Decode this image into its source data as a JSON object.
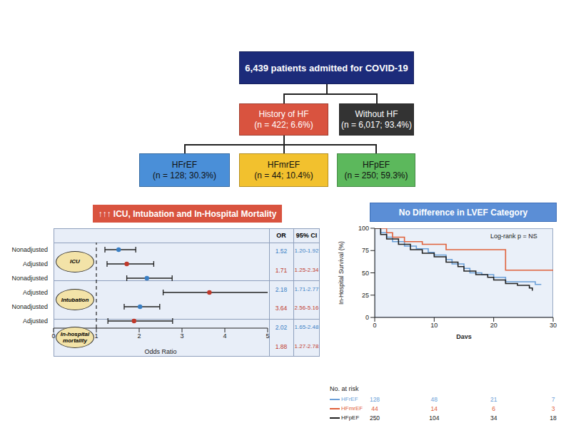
{
  "flowchart": {
    "root": {
      "label": "6,439 patients admitted for COVID-19",
      "color": "#1c2b7a"
    },
    "groups": [
      {
        "label": "History of HF",
        "detail": "(n = 422; 6.6%)",
        "color": "#d9533f"
      },
      {
        "label": "Without HF",
        "detail": "(n = 6,017; 93.4%)",
        "color": "#333333"
      }
    ],
    "subgroups": [
      {
        "label": "HFrEF",
        "detail": "(n = 128; 30.3%)",
        "color": "#4a8fd8"
      },
      {
        "label": "HFmrEF",
        "detail": "(n = 44; 10.4%)",
        "color": "#f2c12e"
      },
      {
        "label": "HFpEF",
        "detail": "(n = 250; 59.3%)",
        "color": "#5cb85c"
      }
    ]
  },
  "chart_data": [
    {
      "type": "forest",
      "title": "↑↑↑ ICU, Intubation and In-Hospital Mortality",
      "categories": [
        "ICU",
        "Intubation",
        "In-hospital mortality"
      ],
      "columns": [
        "OR",
        "95% CI"
      ],
      "series": [
        {
          "name": "Nonadjusted",
          "color": "#3a7fc4",
          "values": [
            1.52,
            2.18,
            2.02
          ],
          "ci_low": [
            1.2,
            1.71,
            1.65
          ],
          "ci_high": [
            1.92,
            2.77,
            2.48
          ],
          "ci_labels": [
            "1.20-1.92",
            "1.71-2.77",
            "1.65-2.48"
          ]
        },
        {
          "name": "Adjusted",
          "color": "#c0392b",
          "values": [
            1.71,
            3.64,
            1.88
          ],
          "ci_low": [
            1.25,
            2.56,
            1.27
          ],
          "ci_high": [
            2.34,
            5.16,
            2.78
          ],
          "ci_labels": [
            "1.25-2.34",
            "2.56-5.16",
            "1.27-2.78"
          ]
        }
      ],
      "x_label": "Odds Ratio",
      "xlim": [
        0,
        5
      ],
      "xticks": [
        0,
        1,
        2,
        3,
        4,
        5
      ],
      "reference_line": 1,
      "grid": false
    },
    {
      "type": "line",
      "title": "No Difference in LVEF Category",
      "annotation": "Log-rank p = NS",
      "x_label": "Days",
      "y_label": "In-Hospital Survival (%)",
      "xlim": [
        0,
        30
      ],
      "xticks": [
        0,
        10,
        20,
        30
      ],
      "ylim": [
        0,
        100
      ],
      "yticks": [
        0,
        25,
        50,
        75,
        100
      ],
      "line_style": "step",
      "grid": false,
      "at_risk_title": "No. at risk",
      "at_risk_x": [
        0,
        10,
        20,
        30
      ],
      "series": [
        {
          "name": "HFrEF",
          "color": "#6a9fd8",
          "x": [
            0,
            1,
            2,
            3,
            5,
            7,
            9,
            10,
            12,
            13,
            15,
            16,
            18,
            20,
            22,
            27,
            28
          ],
          "values": [
            100,
            95,
            90,
            85,
            80,
            77,
            73,
            70,
            65,
            60,
            55,
            50,
            48,
            45,
            40,
            37,
            37
          ],
          "at_risk": [
            128,
            48,
            21,
            7
          ]
        },
        {
          "name": "HFmrEF",
          "color": "#e0603a",
          "x": [
            0,
            2,
            3,
            5,
            8,
            12,
            22,
            30
          ],
          "values": [
            100,
            95,
            90,
            85,
            82,
            76,
            53,
            53
          ],
          "at_risk": [
            44,
            14,
            6,
            3
          ]
        },
        {
          "name": "HFpEF",
          "color": "#222222",
          "x": [
            0,
            1,
            2,
            4,
            6,
            8,
            10,
            12,
            14,
            15,
            17,
            19,
            20,
            22,
            24,
            26,
            26.5
          ],
          "values": [
            100,
            93,
            88,
            82,
            76,
            72,
            68,
            62,
            57,
            52,
            48,
            45,
            42,
            38,
            36,
            33,
            30
          ],
          "at_risk": [
            250,
            104,
            34,
            18
          ]
        }
      ]
    }
  ]
}
